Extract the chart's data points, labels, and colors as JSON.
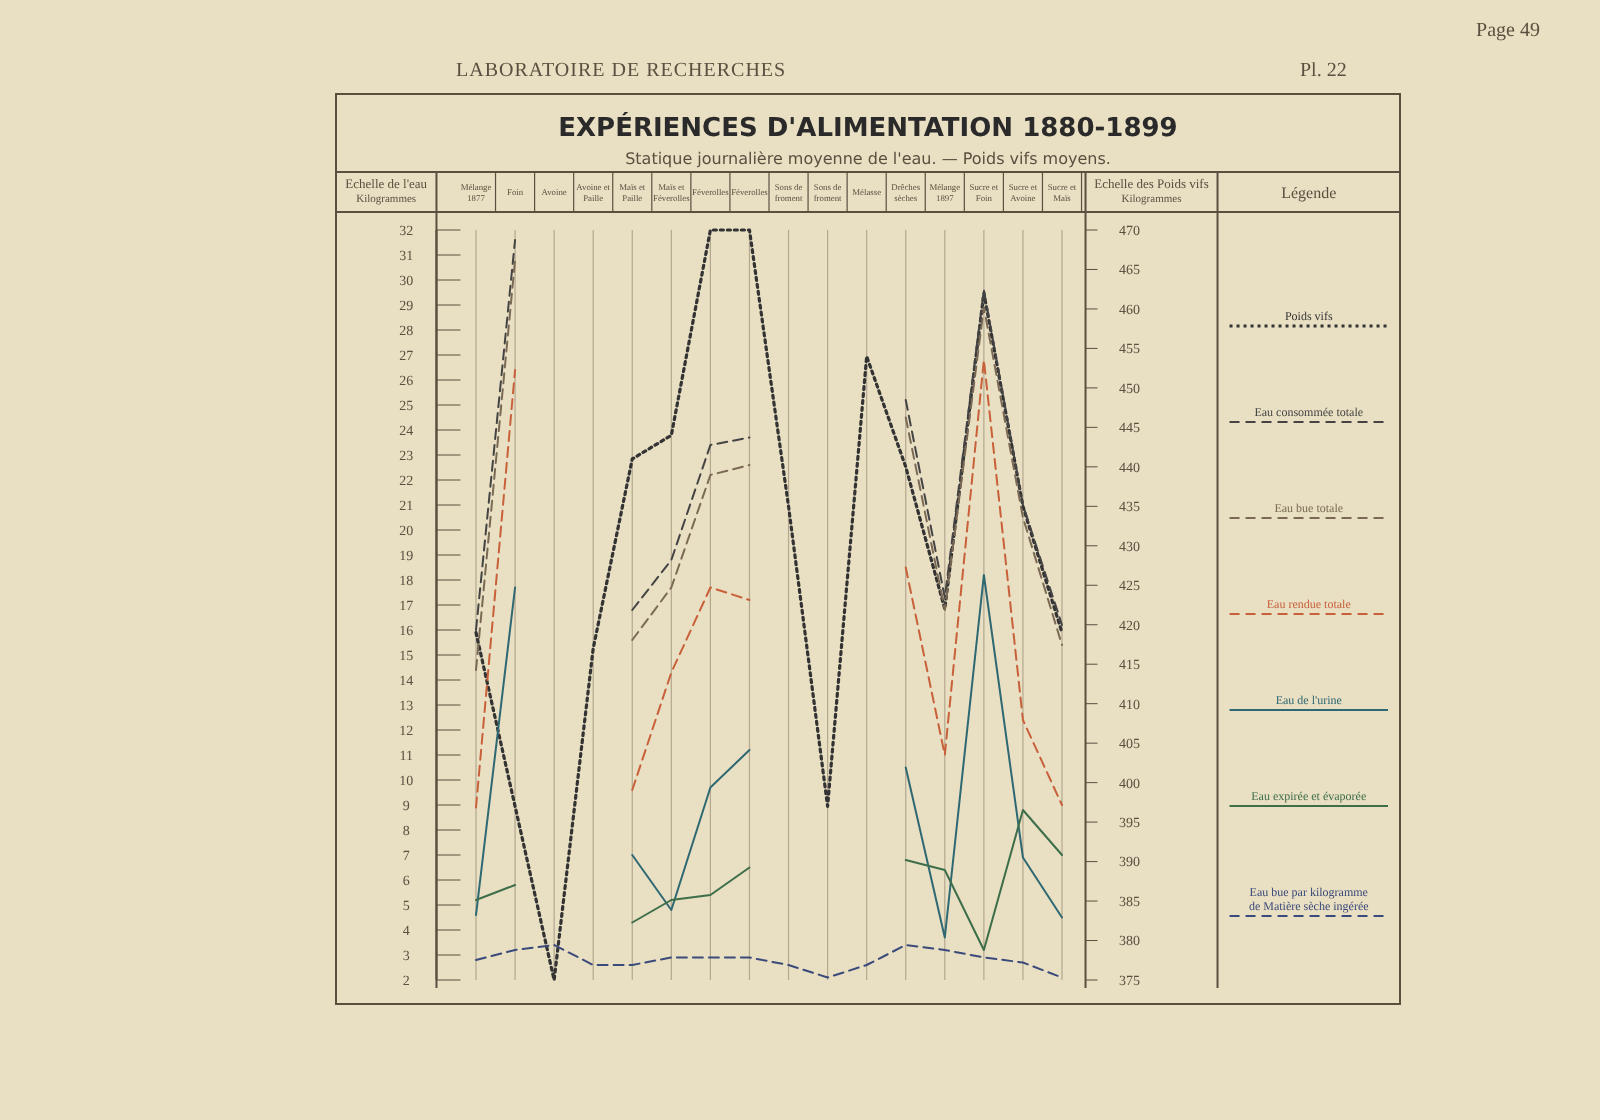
{
  "chart_data": {
    "type": "line",
    "title": "EXPÉRIENCES D'ALIMENTATION 1880-1899",
    "subtitle": "Statique journalière moyenne de l'eau. — Poids vifs moyens.",
    "annotations": [
      "LABORATOIRE DE RECHERCHES",
      "Page 49",
      "Pl. 22"
    ],
    "ylabel": "Echelle de l'eau\nKilogrammes",
    "y2label": "Echelle des Poids vifs\nKilogrammes",
    "legend_title": "Légende",
    "categories": [
      "Mélange 1877",
      "Foin",
      "Avoine",
      "Avoine et Paille",
      "Maïs et Paille",
      "Maïs et Féverolles",
      "Féverolles",
      "Féverolles",
      "Sons de froment",
      "Sons de froment",
      "Mélasse",
      "Drêches sèches",
      "Mélange 1897",
      "Sucre et Foin",
      "Sucre et Avoine",
      "Sucre et Maïs"
    ],
    "ylim": [
      2,
      32
    ],
    "yticks": [
      2,
      3,
      4,
      5,
      6,
      7,
      8,
      9,
      10,
      11,
      12,
      13,
      14,
      15,
      16,
      17,
      18,
      19,
      20,
      21,
      22,
      23,
      24,
      25,
      26,
      27,
      28,
      29,
      30,
      31,
      32
    ],
    "y2lim": [
      375,
      470
    ],
    "y2ticks": [
      375,
      380,
      385,
      390,
      395,
      400,
      405,
      410,
      415,
      420,
      425,
      430,
      435,
      440,
      445,
      450,
      455,
      460,
      465,
      470
    ],
    "grid": "x",
    "legend": "right",
    "series": [
      {
        "name": "Poids vifs",
        "color": "#333333",
        "line_style": "dotted",
        "axis": "y2",
        "values": [
          419,
          397,
          375,
          417,
          441,
          444,
          470,
          470,
          435,
          397,
          454,
          440,
          422,
          462,
          435,
          419
        ]
      },
      {
        "name": "Eau consommée totale",
        "color": "#444444",
        "line_style": "dashed",
        "values": [
          16,
          31.6,
          null,
          null,
          16.8,
          18.8,
          23.4,
          23.7,
          null,
          null,
          null,
          25.2,
          17.3,
          29.6,
          21,
          16.2
        ]
      },
      {
        "name": "Eau bue totale",
        "color": "#7a6a55",
        "line_style": "dashed",
        "values": [
          14.4,
          30.8,
          null,
          null,
          15.6,
          17.7,
          22.2,
          22.6,
          null,
          null,
          null,
          24.5,
          16.8,
          28.9,
          20.5,
          15.4
        ]
      },
      {
        "name": "Eau rendue totale",
        "color": "#c8603a",
        "line_style": "dashed",
        "values": [
          8.9,
          26.4,
          null,
          null,
          9.6,
          14.3,
          17.7,
          17.2,
          null,
          null,
          null,
          18.5,
          11,
          26.8,
          12.4,
          9
        ]
      },
      {
        "name": "Eau de l'urine",
        "color": "#2e6872",
        "line_style": "solid",
        "values": [
          4.6,
          17.7,
          null,
          null,
          7,
          4.8,
          9.7,
          11.2,
          null,
          null,
          null,
          10.5,
          3.7,
          18.2,
          6.9,
          4.5
        ]
      },
      {
        "name": "Eau expirée et évaporée",
        "color": "#3d6e4a",
        "line_style": "solid",
        "values": [
          5.2,
          5.8,
          null,
          null,
          4.3,
          5.2,
          5.4,
          6.5,
          null,
          null,
          null,
          6.8,
          6.4,
          3.2,
          8.8,
          7
        ]
      },
      {
        "name": "Eau bue par kilogramme de Matière sèche ingérée",
        "color": "#3a4a7a",
        "line_style": "dashed",
        "values": [
          2.8,
          3.2,
          3.4,
          2.6,
          2.6,
          2.9,
          2.9,
          2.9,
          2.6,
          2.1,
          2.6,
          3.4,
          3.2,
          2.9,
          2.7,
          2.1
        ]
      }
    ]
  }
}
